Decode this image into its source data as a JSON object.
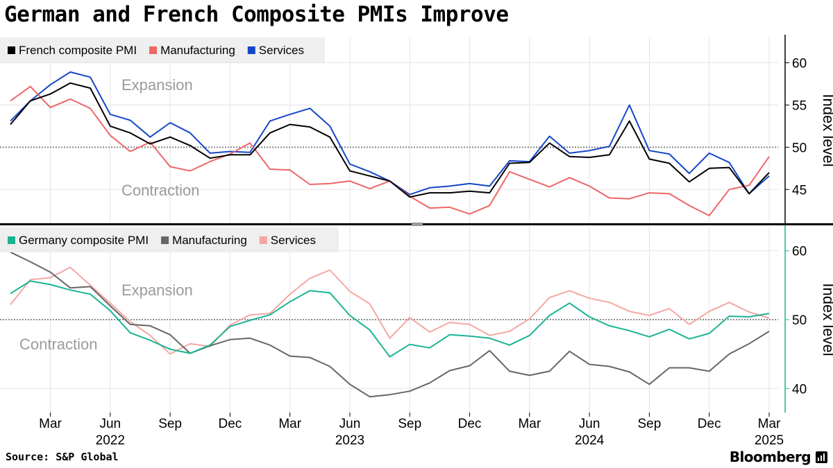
{
  "title": "German and French Composite PMIs Improve",
  "source": "Source: S&P Global",
  "brand": "Bloomberg",
  "chart_data": [
    {
      "type": "line",
      "panel": "top",
      "x": [
        "2022-01",
        "2022-02",
        "2022-03",
        "2022-04",
        "2022-05",
        "2022-06",
        "2022-07",
        "2022-08",
        "2022-09",
        "2022-10",
        "2022-11",
        "2022-12",
        "2023-01",
        "2023-02",
        "2023-03",
        "2023-04",
        "2023-05",
        "2023-06",
        "2023-07",
        "2023-08",
        "2023-09",
        "2023-10",
        "2023-11",
        "2023-12",
        "2024-01",
        "2024-02",
        "2024-03",
        "2024-04",
        "2024-05",
        "2024-06",
        "2024-07",
        "2024-08",
        "2024-09",
        "2024-10",
        "2024-11",
        "2024-12",
        "2025-01",
        "2025-02",
        "2025-03"
      ],
      "series": [
        {
          "name": "French composite PMI",
          "color": "#000000",
          "values": [
            52.7,
            55.5,
            56.3,
            57.6,
            57.0,
            52.5,
            51.7,
            50.4,
            51.2,
            50.2,
            48.7,
            49.1,
            49.1,
            51.7,
            52.7,
            52.4,
            51.2,
            47.2,
            46.6,
            46.0,
            44.1,
            44.6,
            44.6,
            44.8,
            44.6,
            48.1,
            48.2,
            50.5,
            48.9,
            48.8,
            49.1,
            53.1,
            48.6,
            48.1,
            45.9,
            47.5,
            47.6,
            44.5,
            47.0
          ]
        },
        {
          "name": "Manufacturing",
          "color": "#ee6666",
          "values": [
            55.5,
            57.2,
            54.7,
            55.7,
            54.6,
            51.4,
            49.5,
            50.6,
            47.7,
            47.2,
            48.3,
            49.2,
            50.5,
            47.4,
            47.3,
            45.6,
            45.7,
            46.0,
            45.1,
            46.0,
            44.2,
            42.8,
            42.9,
            42.1,
            43.1,
            47.1,
            46.2,
            45.3,
            46.4,
            45.4,
            44.0,
            43.9,
            44.6,
            44.5,
            43.1,
            41.9,
            45.0,
            45.5,
            48.9
          ]
        },
        {
          "name": "Services",
          "color": "#1446c8",
          "values": [
            53.1,
            55.5,
            57.4,
            58.9,
            58.3,
            53.9,
            53.2,
            51.2,
            52.9,
            51.7,
            49.3,
            49.5,
            49.4,
            53.1,
            53.9,
            54.6,
            52.5,
            48.0,
            47.1,
            46.0,
            44.4,
            45.2,
            45.4,
            45.7,
            45.4,
            48.4,
            48.3,
            51.3,
            49.3,
            49.6,
            50.1,
            55.0,
            49.6,
            49.2,
            46.9,
            49.3,
            48.2,
            44.5,
            46.6
          ]
        }
      ],
      "ylim": [
        41,
        63
      ],
      "yticks": [
        45,
        50,
        55,
        60
      ],
      "ylabel": "Index level",
      "reference_line": 50,
      "annotations": [
        "Expansion",
        "Contraction"
      ]
    },
    {
      "type": "line",
      "panel": "bottom",
      "x": [
        "2022-01",
        "2022-02",
        "2022-03",
        "2022-04",
        "2022-05",
        "2022-06",
        "2022-07",
        "2022-08",
        "2022-09",
        "2022-10",
        "2022-11",
        "2022-12",
        "2023-01",
        "2023-02",
        "2023-03",
        "2023-04",
        "2023-05",
        "2023-06",
        "2023-07",
        "2023-08",
        "2023-09",
        "2023-10",
        "2023-11",
        "2023-12",
        "2024-01",
        "2024-02",
        "2024-03",
        "2024-04",
        "2024-05",
        "2024-06",
        "2024-07",
        "2024-08",
        "2024-09",
        "2024-10",
        "2024-11",
        "2024-12",
        "2025-01",
        "2025-02",
        "2025-03"
      ],
      "series": [
        {
          "name": "Germany composite PMI",
          "color": "#1bb394",
          "values": [
            53.8,
            55.6,
            55.1,
            54.3,
            53.7,
            51.3,
            48.1,
            47.0,
            45.7,
            45.1,
            46.3,
            49.0,
            49.9,
            50.7,
            52.6,
            54.2,
            53.9,
            50.6,
            48.5,
            44.6,
            46.4,
            45.9,
            47.8,
            47.6,
            47.3,
            46.3,
            47.7,
            50.6,
            52.4,
            50.4,
            49.1,
            48.4,
            47.5,
            48.6,
            47.2,
            48.0,
            50.5,
            50.4,
            50.9
          ]
        },
        {
          "name": "Manufacturing",
          "color": "#666666",
          "values": [
            59.8,
            58.4,
            56.9,
            54.6,
            54.8,
            52.0,
            49.3,
            49.1,
            47.8,
            45.1,
            46.2,
            47.1,
            47.3,
            46.3,
            44.7,
            44.5,
            43.2,
            40.6,
            38.8,
            39.1,
            39.6,
            40.8,
            42.6,
            43.3,
            45.5,
            42.5,
            41.9,
            42.5,
            45.4,
            43.5,
            43.2,
            42.4,
            40.6,
            43.0,
            43.0,
            42.5,
            45.0,
            46.5,
            48.3
          ]
        },
        {
          "name": "Services",
          "color": "#f4a7a3",
          "values": [
            52.2,
            55.8,
            56.1,
            57.6,
            55.0,
            52.4,
            49.7,
            47.7,
            45.0,
            46.5,
            46.1,
            49.2,
            50.7,
            50.9,
            53.7,
            56.0,
            57.2,
            54.1,
            52.3,
            47.3,
            50.3,
            48.2,
            49.6,
            49.3,
            47.7,
            48.3,
            50.1,
            53.2,
            54.2,
            53.1,
            52.5,
            51.2,
            50.6,
            51.6,
            49.3,
            51.2,
            52.5,
            51.1,
            50.2
          ]
        }
      ],
      "ylim": [
        36.5,
        63.5
      ],
      "yticks": [
        40,
        50,
        60
      ],
      "ylabel": "Index level",
      "reference_line": 50,
      "annotations": [
        "Expansion",
        "Contraction"
      ]
    }
  ],
  "x_axis": {
    "months": [
      "Mar",
      "Jun",
      "Sep",
      "Dec",
      "Mar",
      "Jun",
      "Sep",
      "Dec",
      "Mar",
      "Jun",
      "Sep",
      "Dec",
      "Mar"
    ],
    "years": [
      "2022",
      "2023",
      "2024",
      "2025"
    ]
  }
}
